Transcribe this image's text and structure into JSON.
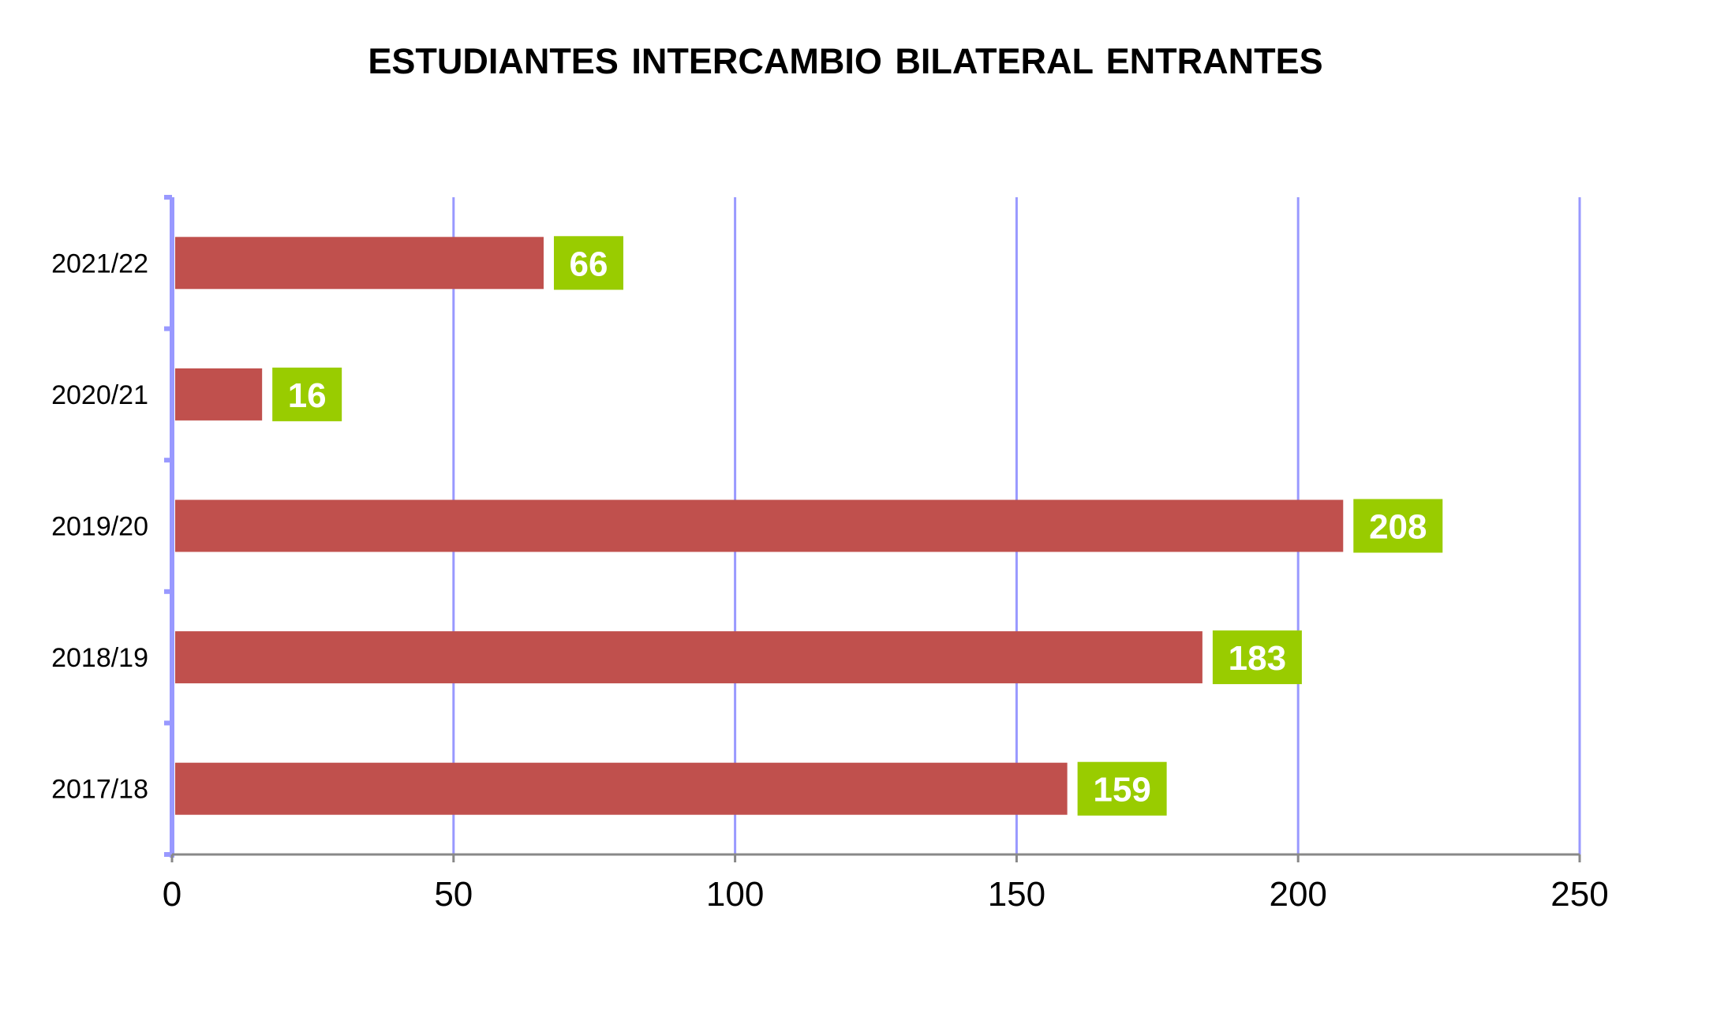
{
  "chart_data": {
    "type": "bar",
    "orientation": "horizontal",
    "title": "ESTUDIANTES INTERCAMBIO BILATERAL ENTRANTES",
    "categories": [
      "2021/22",
      "2020/21",
      "2019/20",
      "2018/19",
      "2017/18"
    ],
    "values": [
      66,
      16,
      208,
      183,
      159
    ],
    "data_labels": [
      "66",
      "16",
      "208",
      "183",
      "159"
    ],
    "xlabel": "",
    "ylabel": "",
    "xlim": [
      0,
      250
    ],
    "x_ticks": [
      "0",
      "50",
      "100",
      "150",
      "200",
      "250"
    ],
    "grid": "vertical",
    "legend": "none",
    "colors": {
      "bar": "#C0504D",
      "label_box": "#99CC00",
      "label_text": "#FFFFFF",
      "gridline": "#9999FF",
      "value_axis": "#888888"
    }
  }
}
